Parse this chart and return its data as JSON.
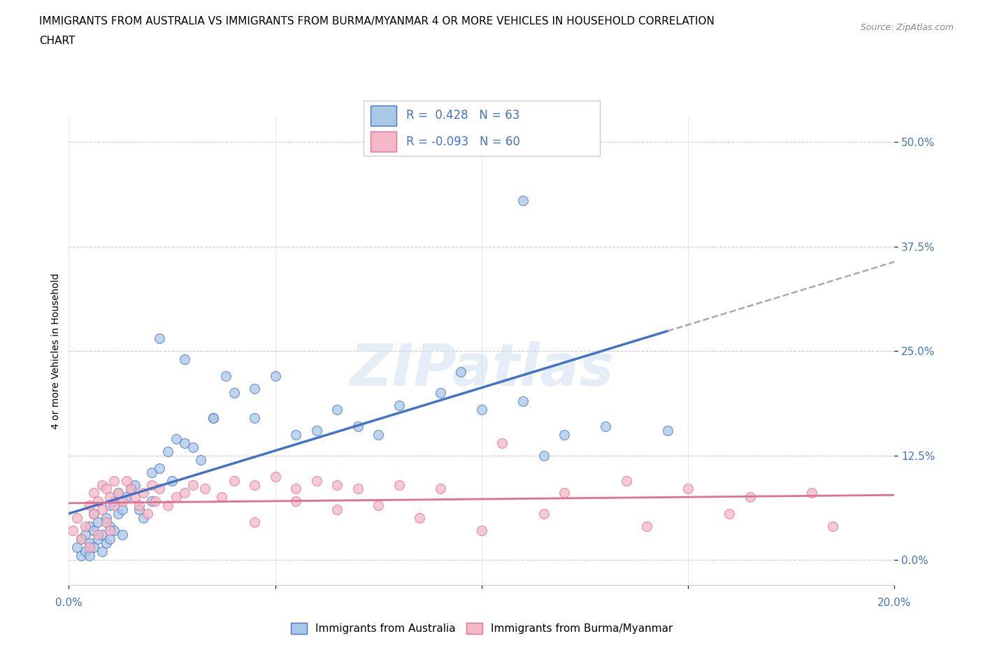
{
  "title_line1": "IMMIGRANTS FROM AUSTRALIA VS IMMIGRANTS FROM BURMA/MYANMAR 4 OR MORE VEHICLES IN HOUSEHOLD CORRELATION",
  "title_line2": "CHART",
  "source": "Source: ZipAtlas.com",
  "ylabel": "4 or more Vehicles in Household",
  "yticks_labels": [
    "0.0%",
    "12.5%",
    "25.0%",
    "37.5%",
    "50.0%"
  ],
  "ytick_vals": [
    0.0,
    12.5,
    25.0,
    37.5,
    50.0
  ],
  "xlim": [
    0.0,
    20.0
  ],
  "ylim": [
    -3.0,
    53.0
  ],
  "legend_r_australia": "0.428",
  "legend_n_australia": "63",
  "legend_r_burma": "-0.093",
  "legend_n_burma": "60",
  "color_australia_fill": "#a8c8e8",
  "color_australia_edge": "#4472c4",
  "color_burma_fill": "#f4b8c8",
  "color_burma_edge": "#e07090",
  "color_line_australia": "#4472c4",
  "color_line_burma": "#e07090",
  "color_tick_labels": "#4472c4",
  "watermark_text": "ZIPatlas",
  "aus_x": [
    0.2,
    0.3,
    0.3,
    0.4,
    0.4,
    0.5,
    0.5,
    0.5,
    0.6,
    0.6,
    0.6,
    0.7,
    0.7,
    0.8,
    0.8,
    0.9,
    0.9,
    1.0,
    1.0,
    1.0,
    1.1,
    1.1,
    1.2,
    1.2,
    1.3,
    1.3,
    1.4,
    1.5,
    1.6,
    1.7,
    1.8,
    2.0,
    2.0,
    2.2,
    2.4,
    2.5,
    2.6,
    2.8,
    3.0,
    3.2,
    3.5,
    3.8,
    4.0,
    4.5,
    5.0,
    5.5,
    6.0,
    6.5,
    7.0,
    7.5,
    8.0,
    9.0,
    9.5,
    10.0,
    11.0,
    12.0,
    13.0,
    14.5,
    2.2,
    3.5,
    11.5,
    2.8,
    4.5
  ],
  "aus_y": [
    1.5,
    0.5,
    2.5,
    1.0,
    3.0,
    2.0,
    0.5,
    4.0,
    1.5,
    3.5,
    5.5,
    2.5,
    4.5,
    3.0,
    1.0,
    5.0,
    2.0,
    4.0,
    6.5,
    2.5,
    3.5,
    7.0,
    5.5,
    8.0,
    6.0,
    3.0,
    7.5,
    8.5,
    9.0,
    6.0,
    5.0,
    10.5,
    7.0,
    11.0,
    13.0,
    9.5,
    14.5,
    14.0,
    13.5,
    12.0,
    17.0,
    22.0,
    20.0,
    20.5,
    22.0,
    15.0,
    15.5,
    18.0,
    16.0,
    15.0,
    18.5,
    20.0,
    22.5,
    18.0,
    19.0,
    15.0,
    16.0,
    15.5,
    26.5,
    17.0,
    12.5,
    24.0,
    17.0
  ],
  "aus_outlier_x": [
    11.0
  ],
  "aus_outlier_y": [
    43.0
  ],
  "burma_x": [
    0.1,
    0.2,
    0.3,
    0.4,
    0.5,
    0.5,
    0.6,
    0.6,
    0.7,
    0.7,
    0.8,
    0.8,
    0.9,
    0.9,
    1.0,
    1.0,
    1.1,
    1.1,
    1.2,
    1.3,
    1.4,
    1.5,
    1.6,
    1.7,
    1.8,
    1.9,
    2.0,
    2.1,
    2.2,
    2.4,
    2.6,
    2.8,
    3.0,
    3.3,
    3.7,
    4.0,
    4.5,
    5.0,
    5.5,
    6.0,
    6.5,
    7.0,
    8.0,
    9.0,
    10.5,
    12.0,
    13.5,
    15.0,
    16.5,
    18.0,
    4.5,
    6.5,
    8.5,
    10.0,
    14.0,
    16.0,
    18.5,
    5.5,
    7.5,
    11.5
  ],
  "burma_y": [
    3.5,
    5.0,
    2.5,
    4.0,
    6.5,
    1.5,
    5.5,
    8.0,
    7.0,
    3.0,
    6.0,
    9.0,
    4.5,
    8.5,
    7.5,
    3.5,
    6.5,
    9.5,
    8.0,
    7.0,
    9.5,
    8.5,
    7.5,
    6.5,
    8.0,
    5.5,
    9.0,
    7.0,
    8.5,
    6.5,
    7.5,
    8.0,
    9.0,
    8.5,
    7.5,
    9.5,
    9.0,
    10.0,
    8.5,
    9.5,
    9.0,
    8.5,
    9.0,
    8.5,
    14.0,
    8.0,
    9.5,
    8.5,
    7.5,
    8.0,
    4.5,
    6.0,
    5.0,
    3.5,
    4.0,
    5.5,
    4.0,
    7.0,
    6.5,
    5.5
  ]
}
